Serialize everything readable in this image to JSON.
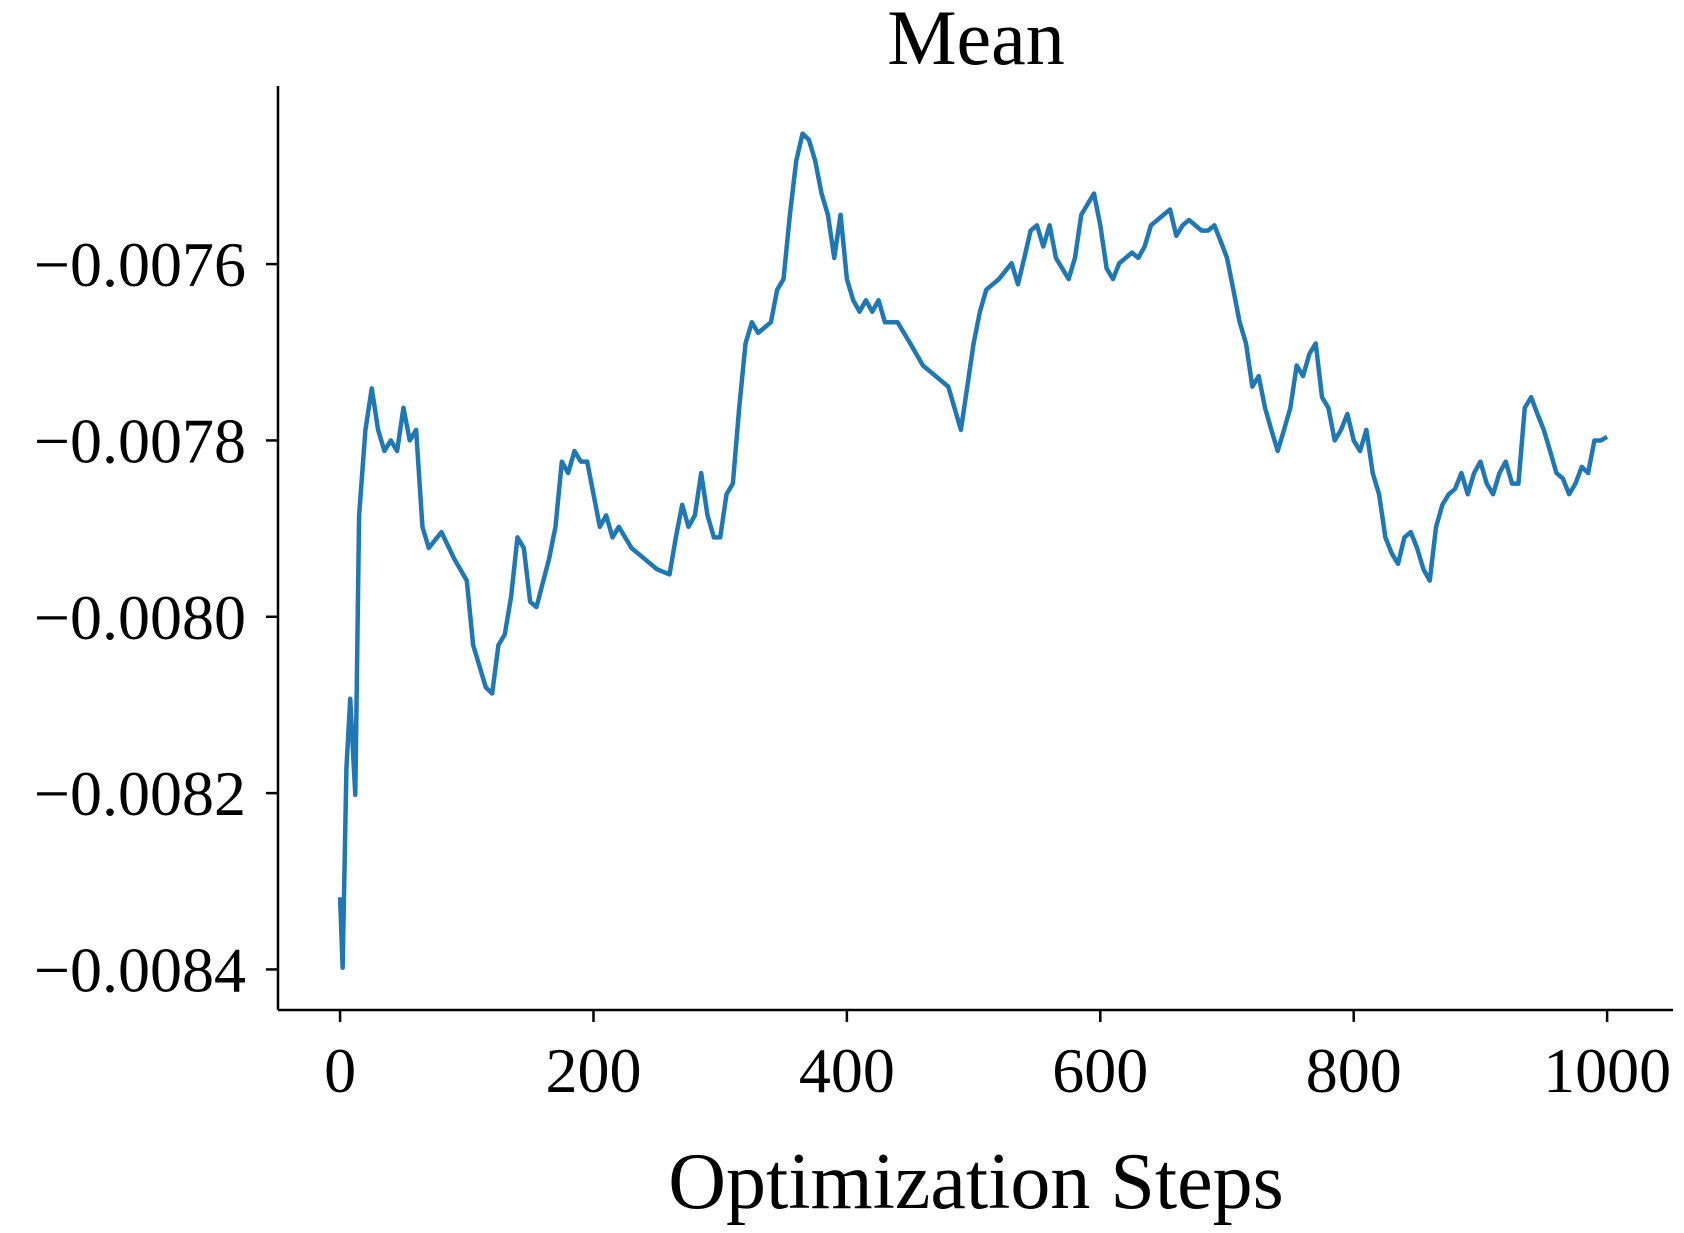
{
  "chart_data": {
    "type": "line",
    "title": "Mean",
    "x_label": "Optimization Steps",
    "color": "#1f77b4",
    "x": [
      0,
      2,
      5,
      8,
      12,
      15,
      20,
      25,
      30,
      35,
      40,
      45,
      50,
      55,
      60,
      65,
      70,
      80,
      90,
      100,
      105,
      110,
      115,
      120,
      125,
      130,
      135,
      140,
      145,
      150,
      155,
      165,
      170,
      175,
      180,
      185,
      190,
      195,
      200,
      205,
      210,
      215,
      220,
      230,
      240,
      250,
      260,
      265,
      270,
      275,
      280,
      285,
      290,
      295,
      300,
      305,
      310,
      315,
      320,
      325,
      330,
      340,
      345,
      350,
      355,
      360,
      365,
      370,
      375,
      380,
      385,
      390,
      395,
      400,
      405,
      410,
      415,
      420,
      425,
      430,
      440,
      450,
      460,
      470,
      480,
      490,
      495,
      500,
      505,
      510,
      520,
      530,
      535,
      540,
      545,
      550,
      555,
      560,
      565,
      570,
      575,
      580,
      585,
      590,
      595,
      600,
      605,
      610,
      615,
      620,
      625,
      630,
      635,
      640,
      645,
      650,
      655,
      660,
      665,
      670,
      680,
      685,
      690,
      695,
      700,
      705,
      710,
      715,
      720,
      725,
      730,
      735,
      740,
      745,
      750,
      755,
      760,
      765,
      770,
      775,
      780,
      785,
      790,
      795,
      800,
      805,
      810,
      815,
      820,
      825,
      830,
      835,
      840,
      845,
      850,
      855,
      860,
      865,
      870,
      875,
      880,
      885,
      890,
      895,
      900,
      905,
      910,
      915,
      920,
      925,
      930,
      935,
      940,
      945,
      950,
      955,
      960,
      965,
      970,
      975,
      980,
      985,
      990,
      995,
      1000
    ],
    "values": [
      -0.008318,
      -0.008398,
      -0.008172,
      -0.008093,
      -0.008202,
      -0.007885,
      -0.007788,
      -0.007741,
      -0.007788,
      -0.007812,
      -0.0078,
      -0.007812,
      -0.007763,
      -0.0078,
      -0.007788,
      -0.007898,
      -0.007922,
      -0.007904,
      -0.007934,
      -0.007959,
      -0.008032,
      -0.008056,
      -0.00808,
      -0.008087,
      -0.008032,
      -0.00802,
      -0.007977,
      -0.00791,
      -0.007922,
      -0.007983,
      -0.007989,
      -0.007934,
      -0.007898,
      -0.007824,
      -0.007837,
      -0.007812,
      -0.007824,
      -0.007824,
      -0.007861,
      -0.007898,
      -0.007885,
      -0.00791,
      -0.007898,
      -0.007922,
      -0.007934,
      -0.007946,
      -0.007952,
      -0.00791,
      -0.007873,
      -0.007898,
      -0.007885,
      -0.007837,
      -0.007885,
      -0.00791,
      -0.00791,
      -0.007861,
      -0.007849,
      -0.007763,
      -0.00769,
      -0.007666,
      -0.007678,
      -0.007666,
      -0.007629,
      -0.007617,
      -0.007544,
      -0.007483,
      -0.007452,
      -0.007459,
      -0.007483,
      -0.00752,
      -0.007544,
      -0.007593,
      -0.007544,
      -0.007617,
      -0.007641,
      -0.007654,
      -0.007641,
      -0.007654,
      -0.007641,
      -0.007666,
      -0.007666,
      -0.00769,
      -0.007715,
      -0.007727,
      -0.007739,
      -0.007788,
      -0.007739,
      -0.00769,
      -0.007654,
      -0.007629,
      -0.007617,
      -0.007599,
      -0.007623,
      -0.007593,
      -0.007562,
      -0.007556,
      -0.00758,
      -0.007556,
      -0.007593,
      -0.007605,
      -0.007617,
      -0.007593,
      -0.007544,
      -0.007532,
      -0.00752,
      -0.007556,
      -0.007605,
      -0.007617,
      -0.007599,
      -0.007593,
      -0.007587,
      -0.007593,
      -0.00758,
      -0.007556,
      -0.00755,
      -0.007544,
      -0.007538,
      -0.007568,
      -0.007556,
      -0.00755,
      -0.007562,
      -0.007562,
      -0.007556,
      -0.007574,
      -0.007593,
      -0.007629,
      -0.007666,
      -0.00769,
      -0.007739,
      -0.007727,
      -0.007763,
      -0.007788,
      -0.007812,
      -0.007788,
      -0.007763,
      -0.007715,
      -0.007727,
      -0.007702,
      -0.00769,
      -0.007751,
      -0.007763,
      -0.0078,
      -0.007788,
      -0.00777,
      -0.0078,
      -0.007812,
      -0.007788,
      -0.007837,
      -0.007861,
      -0.00791,
      -0.007928,
      -0.00794,
      -0.00791,
      -0.007904,
      -0.007922,
      -0.007946,
      -0.007959,
      -0.007898,
      -0.007873,
      -0.007861,
      -0.007855,
      -0.007837,
      -0.007861,
      -0.007837,
      -0.007824,
      -0.007849,
      -0.007861,
      -0.007837,
      -0.007824,
      -0.007849,
      -0.007849,
      -0.007763,
      -0.007751,
      -0.00777,
      -0.007788,
      -0.007812,
      -0.007837,
      -0.007843,
      -0.007861,
      -0.007849,
      -0.00783,
      -0.007837,
      -0.0078,
      -0.0078,
      -0.007796
    ],
    "xlim": [
      -49,
      1052
    ],
    "xticks": [
      0,
      200,
      400,
      600,
      800,
      1000
    ],
    "ylim": [
      -0.008446,
      -0.007398
    ],
    "yticks": [
      {
        "value": -0.0084,
        "label": "−0.0084"
      },
      {
        "value": -0.0082,
        "label": "−0.0082"
      },
      {
        "value": -0.008,
        "label": "−0.0080"
      },
      {
        "value": -0.0078,
        "label": "−0.0078"
      },
      {
        "value": -0.0076,
        "label": "−0.0076"
      }
    ],
    "grid": false
  }
}
